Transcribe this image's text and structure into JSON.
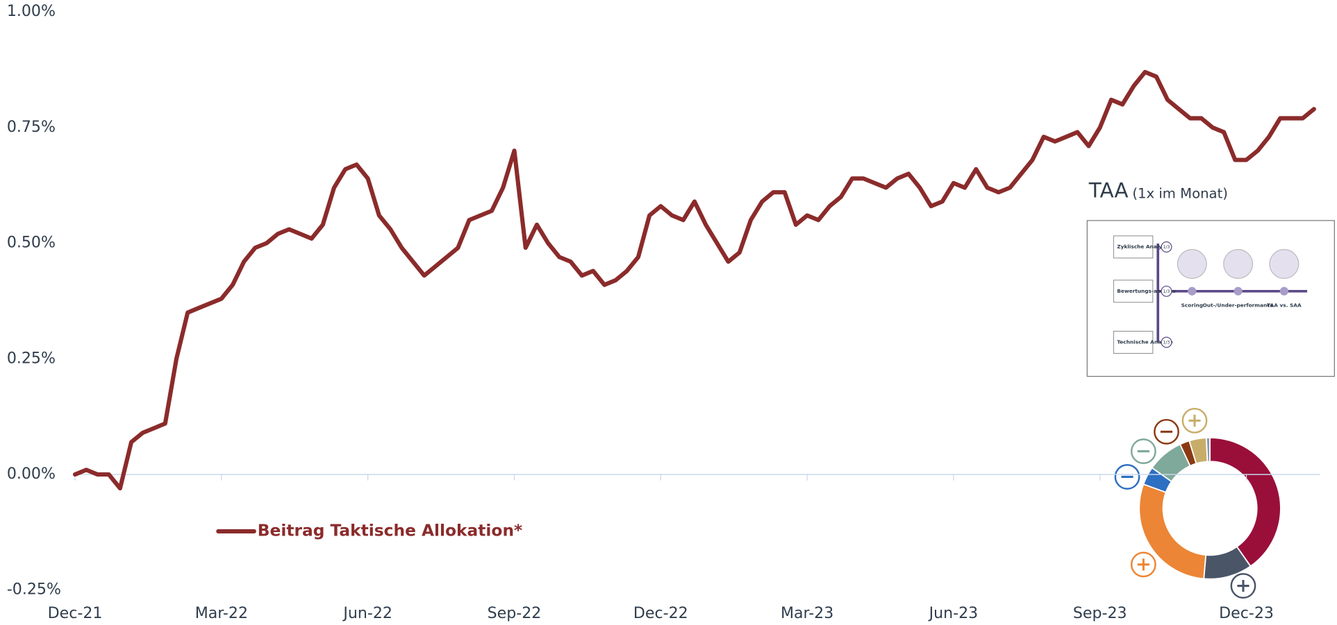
{
  "chart_data": {
    "type": "line",
    "categories": [
      "Dec-21",
      null,
      null,
      null,
      null,
      null,
      null,
      null,
      null,
      null,
      null,
      null,
      null,
      "Mar-22",
      null,
      null,
      null,
      null,
      null,
      null,
      null,
      null,
      null,
      null,
      null,
      null,
      "Jun-22",
      null,
      null,
      null,
      null,
      null,
      null,
      null,
      null,
      null,
      null,
      null,
      null,
      "Sep-22",
      null,
      null,
      null,
      null,
      null,
      null,
      null,
      null,
      null,
      null,
      null,
      null,
      "Dec-22",
      null,
      null,
      null,
      null,
      null,
      null,
      null,
      null,
      null,
      null,
      null,
      null,
      "Mar-23",
      null,
      null,
      null,
      null,
      null,
      null,
      null,
      null,
      null,
      null,
      null,
      null,
      "Jun-23",
      null,
      null,
      null,
      null,
      null,
      null,
      null,
      null,
      null,
      null,
      null,
      null,
      "Sep-23",
      null,
      null,
      null,
      null,
      null,
      null,
      null,
      null,
      null,
      null,
      null,
      null,
      "Dec-23",
      null,
      null,
      null,
      null,
      null,
      null
    ],
    "series": [
      {
        "name": "Beitrag Taktische Allokation*",
        "color": "#8b2b2b",
        "values": [
          0.0,
          0.01,
          0.0,
          0.0,
          -0.03,
          0.07,
          0.09,
          0.1,
          0.11,
          0.25,
          0.35,
          0.36,
          0.37,
          0.38,
          0.41,
          0.46,
          0.49,
          0.5,
          0.52,
          0.53,
          0.52,
          0.51,
          0.54,
          0.62,
          0.66,
          0.67,
          0.64,
          0.56,
          0.53,
          0.49,
          0.46,
          0.43,
          0.45,
          0.47,
          0.49,
          0.55,
          0.56,
          0.57,
          0.62,
          0.7,
          0.49,
          0.54,
          0.5,
          0.47,
          0.46,
          0.43,
          0.44,
          0.41,
          0.42,
          0.44,
          0.47,
          0.56,
          0.58,
          0.56,
          0.55,
          0.59,
          0.54,
          0.5,
          0.46,
          0.48,
          0.55,
          0.59,
          0.61,
          0.61,
          0.54,
          0.56,
          0.55,
          0.58,
          0.6,
          0.64,
          0.64,
          0.63,
          0.62,
          0.64,
          0.65,
          0.62,
          0.58,
          0.59,
          0.63,
          0.62,
          0.66,
          0.62,
          0.61,
          0.62,
          0.65,
          0.68,
          0.73,
          0.72,
          0.73,
          0.74,
          0.71,
          0.75,
          0.81,
          0.8,
          0.84,
          0.87,
          0.86,
          0.81,
          0.79,
          0.77,
          0.77,
          0.75,
          0.74,
          0.68,
          0.68,
          0.7,
          0.73,
          0.77,
          0.77,
          0.77,
          0.79
        ]
      }
    ],
    "ylim": [
      -0.25,
      1
    ],
    "yticks": [
      {
        "value": -0.25,
        "label": "-0.25%"
      },
      {
        "value": 0,
        "label": "0.00%"
      },
      {
        "value": 0.25,
        "label": "0.25%"
      },
      {
        "value": 0.5,
        "label": "0.50%"
      },
      {
        "value": 0.75,
        "label": "0.75%"
      },
      {
        "value": 1,
        "label": "1.00%"
      }
    ],
    "negative_tick_color": "#ff0000",
    "zero_line": true,
    "legend": "bottom-left"
  },
  "inset": {
    "title": "TAA",
    "subtitle": "(1x im Monat)",
    "analyses": [
      "Zyklische Analyse",
      "Bewertungs-analyse",
      "Technische Analyse"
    ],
    "weight": "1/3",
    "steps": [
      "Scoring",
      "Out-/Under-performance",
      "TAA vs. SAA"
    ]
  }
}
